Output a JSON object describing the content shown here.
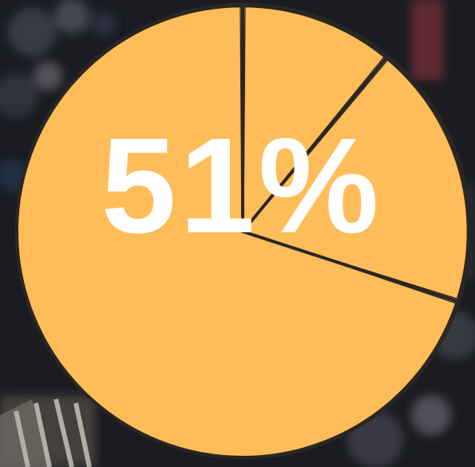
{
  "headline": {
    "value": "51%"
  },
  "colors": {
    "slice_fill": "#ffbd59",
    "outline": "#2b2723",
    "headline_text": "#ffffff",
    "background": "#1a1c22"
  },
  "chart_data": {
    "type": "pie",
    "title": "",
    "slices": [
      {
        "value": 11
      },
      {
        "value": 19
      },
      {
        "value": 70
      }
    ],
    "start_angle_deg": 0,
    "direction": "clockwise",
    "outline": "sketchy"
  }
}
